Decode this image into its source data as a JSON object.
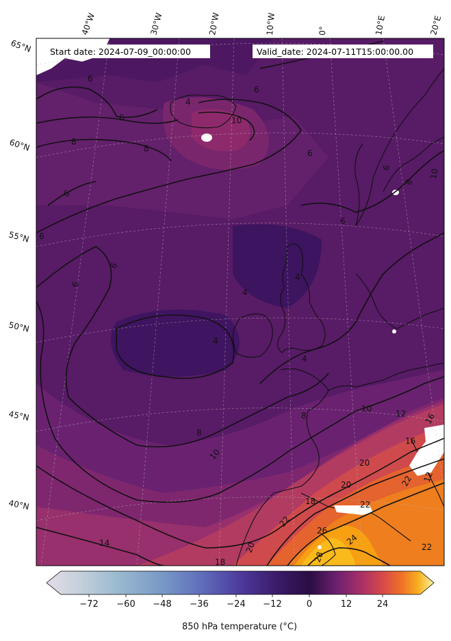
{
  "header": {
    "start_date": "Start date: 2024-07-09_00:00:00",
    "valid_date": "Valid_date: 2024-07-11T15:00:00.00"
  },
  "map": {
    "lon_labels": [
      "40°W",
      "30°W",
      "20°W",
      "10°W",
      "0°",
      "10°E",
      "20°E"
    ],
    "lat_labels": [
      "65°N",
      "60°N",
      "55°N",
      "50°N",
      "45°N",
      "40°N"
    ],
    "contour_labels": [
      "6",
      "6",
      "6",
      "6",
      "6",
      "8",
      "8",
      "10",
      "4",
      "4",
      "4",
      "4",
      "4",
      "6",
      "6",
      "6",
      "8",
      "8",
      "10",
      "10",
      "12",
      "14",
      "16",
      "16",
      "18",
      "18",
      "20",
      "20",
      "20",
      "22",
      "22",
      "22",
      "22",
      "24",
      "26",
      "28",
      "6",
      "6",
      "8",
      "10",
      "12"
    ],
    "palette": [
      "#2e0f4e",
      "#4a1660",
      "#5e1d69",
      "#73236d",
      "#89296e",
      "#a3326c",
      "#bd3f5e",
      "#d54f48",
      "#e86a2c",
      "#f08a1a",
      "#f7a60f",
      "#fcc635"
    ]
  },
  "colorbar": {
    "ticks": [
      "−72",
      "−60",
      "−48",
      "−36",
      "−24",
      "−12",
      "0",
      "12",
      "24"
    ],
    "label": "850 hPa temperature ($^\\circ$C)",
    "label_display": "850 hPa temperature (°C)",
    "colors": [
      "#e4dde8",
      "#c7d1dc",
      "#a8c0d2",
      "#88aacb",
      "#6f8fc3",
      "#5f6ebb",
      "#5548a6",
      "#4a2a86",
      "#2b0d43",
      "#5a1a6a",
      "#8b266e",
      "#b8345f",
      "#dc4d46",
      "#ef7526",
      "#f9a00f",
      "#fbd04a",
      "#fbf3a0"
    ]
  }
}
